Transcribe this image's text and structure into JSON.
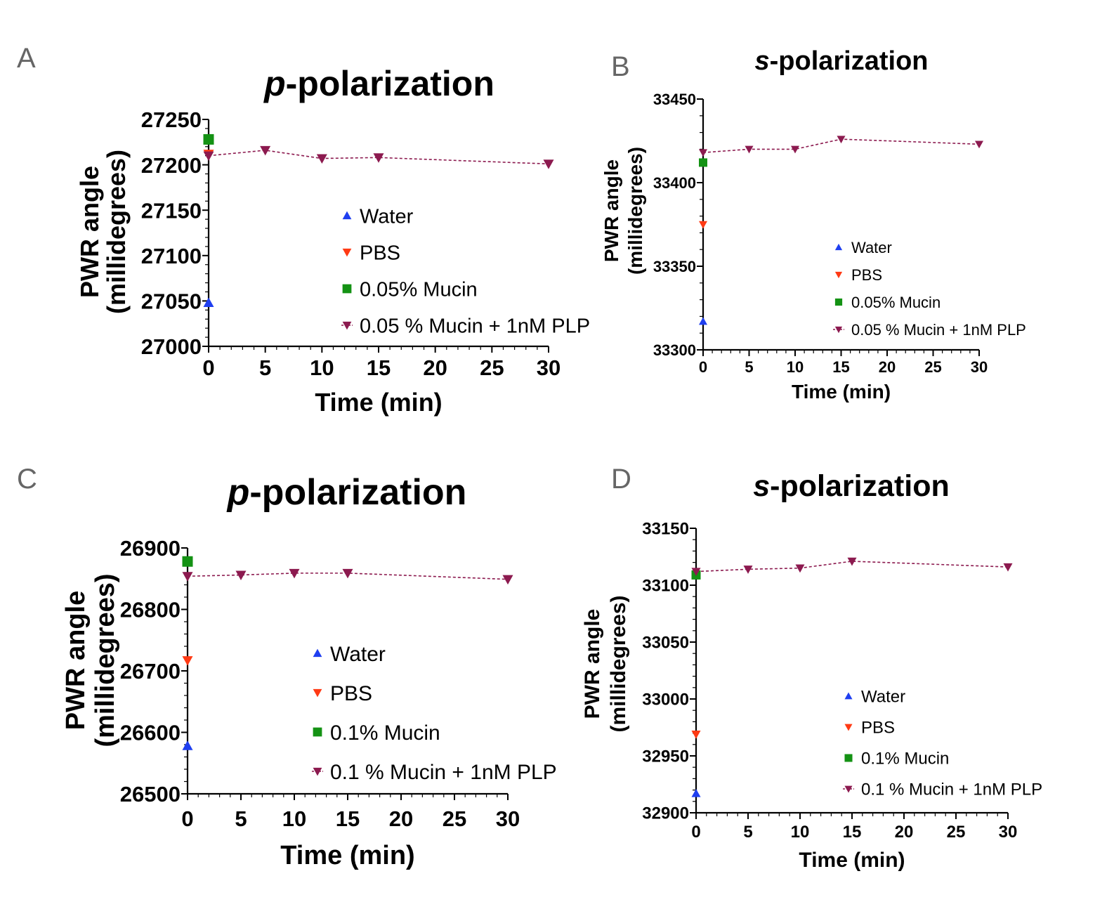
{
  "colors": {
    "water": "#1f3ff0",
    "pbs": "#ff3a14",
    "mucin": "#149214",
    "mucin_plp": "#8c1a4f",
    "axis": "#000000"
  },
  "chart_data": [
    {
      "panel": "A",
      "type": "scatter",
      "title_italic": "p",
      "title_rest": "-polarization",
      "xlabel": "Time (min)",
      "ylabel_line1": "PWR angle",
      "ylabel_line2": "(millidegrees)",
      "xlim": [
        0,
        30
      ],
      "ylim": [
        27000,
        27250
      ],
      "xticks": [
        0,
        5,
        10,
        15,
        20,
        25,
        30
      ],
      "yticks": [
        27000,
        27050,
        27100,
        27150,
        27200,
        27250
      ],
      "legend_position": "center-right",
      "series": [
        {
          "name": "Water",
          "marker": "triangle-up",
          "color_key": "water",
          "points": [
            [
              0,
              27048
            ]
          ]
        },
        {
          "name": "PBS",
          "marker": "triangle-down",
          "color_key": "pbs",
          "points": [
            [
              0,
              27212
            ]
          ]
        },
        {
          "name": "0.05% Mucin",
          "marker": "square",
          "color_key": "mucin",
          "points": [
            [
              0,
              27228
            ]
          ]
        },
        {
          "name": "0.05 % Mucin + 1nM PLP",
          "marker": "triangle-down",
          "color_key": "mucin_plp",
          "line": "dashed",
          "points": [
            [
              0,
              27210
            ],
            [
              5,
              27216
            ],
            [
              10,
              27207
            ],
            [
              15,
              27208
            ],
            [
              30,
              27201
            ]
          ]
        }
      ]
    },
    {
      "panel": "B",
      "type": "scatter",
      "title_italic": "s",
      "title_rest": "-polarization",
      "xlabel": "Time (min)",
      "ylabel_line1": "PWR angle",
      "ylabel_line2": "(millidegrees)",
      "xlim": [
        0,
        30
      ],
      "ylim": [
        33300,
        33450
      ],
      "xticks": [
        0,
        5,
        10,
        15,
        20,
        25,
        30
      ],
      "yticks": [
        33300,
        33350,
        33400,
        33450
      ],
      "legend_position": "center-right",
      "series": [
        {
          "name": "Water",
          "marker": "triangle-up",
          "color_key": "water",
          "points": [
            [
              0,
              33317
            ]
          ]
        },
        {
          "name": "PBS",
          "marker": "triangle-down",
          "color_key": "pbs",
          "points": [
            [
              0,
              33375
            ]
          ]
        },
        {
          "name": "0.05% Mucin",
          "marker": "square",
          "color_key": "mucin",
          "points": [
            [
              0,
              33412
            ]
          ]
        },
        {
          "name": "0.05 % Mucin + 1nM PLP",
          "marker": "triangle-down",
          "color_key": "mucin_plp",
          "line": "dashed",
          "points": [
            [
              0,
              33418
            ],
            [
              5,
              33420
            ],
            [
              10,
              33420
            ],
            [
              15,
              33426
            ],
            [
              30,
              33423
            ]
          ]
        }
      ]
    },
    {
      "panel": "C",
      "type": "scatter",
      "title_italic": "p",
      "title_rest": "-polarization",
      "xlabel": "Time (min)",
      "ylabel_line1": "PWR angle",
      "ylabel_line2": "(millidegrees)",
      "xlim": [
        0,
        30
      ],
      "ylim": [
        26500,
        26900
      ],
      "xticks": [
        0,
        5,
        10,
        15,
        20,
        25,
        30
      ],
      "yticks": [
        26500,
        26600,
        26700,
        26800,
        26900
      ],
      "legend_position": "center-right",
      "series": [
        {
          "name": "Water",
          "marker": "triangle-up",
          "color_key": "water",
          "points": [
            [
              0,
              26578
            ]
          ]
        },
        {
          "name": "PBS",
          "marker": "triangle-down",
          "color_key": "pbs",
          "points": [
            [
              0,
              26717
            ]
          ]
        },
        {
          "name": "0.1% Mucin",
          "marker": "square",
          "color_key": "mucin",
          "points": [
            [
              0,
              26878
            ]
          ]
        },
        {
          "name": "0.1 % Mucin + 1nM PLP",
          "marker": "triangle-down",
          "color_key": "mucin_plp",
          "line": "dashed",
          "points": [
            [
              0,
              26854
            ],
            [
              5,
              26856
            ],
            [
              10,
              26859
            ],
            [
              15,
              26859
            ],
            [
              30,
              26849
            ]
          ]
        }
      ]
    },
    {
      "panel": "D",
      "type": "scatter",
      "title_italic": "s",
      "title_rest": "-polarization",
      "xlabel": "Time (min)",
      "ylabel_line1": "PWR angle",
      "ylabel_line2": "(millidegrees)",
      "xlim": [
        0,
        30
      ],
      "ylim": [
        32900,
        33150
      ],
      "xticks": [
        0,
        5,
        10,
        15,
        20,
        25,
        30
      ],
      "yticks": [
        32900,
        32950,
        33000,
        33050,
        33100,
        33150
      ],
      "legend_position": "bottom-right",
      "series": [
        {
          "name": "Water",
          "marker": "triangle-up",
          "color_key": "water",
          "points": [
            [
              0,
              32917
            ]
          ]
        },
        {
          "name": "PBS",
          "marker": "triangle-down",
          "color_key": "pbs",
          "points": [
            [
              0,
              32969
            ]
          ]
        },
        {
          "name": "0.1% Mucin",
          "marker": "square",
          "color_key": "mucin",
          "points": [
            [
              0,
              33109
            ]
          ]
        },
        {
          "name": "0.1 % Mucin + 1nM PLP",
          "marker": "triangle-down",
          "color_key": "mucin_plp",
          "line": "dashed",
          "points": [
            [
              0,
              33112
            ],
            [
              5,
              33114
            ],
            [
              10,
              33115
            ],
            [
              15,
              33121
            ],
            [
              30,
              33116
            ]
          ]
        }
      ]
    }
  ]
}
